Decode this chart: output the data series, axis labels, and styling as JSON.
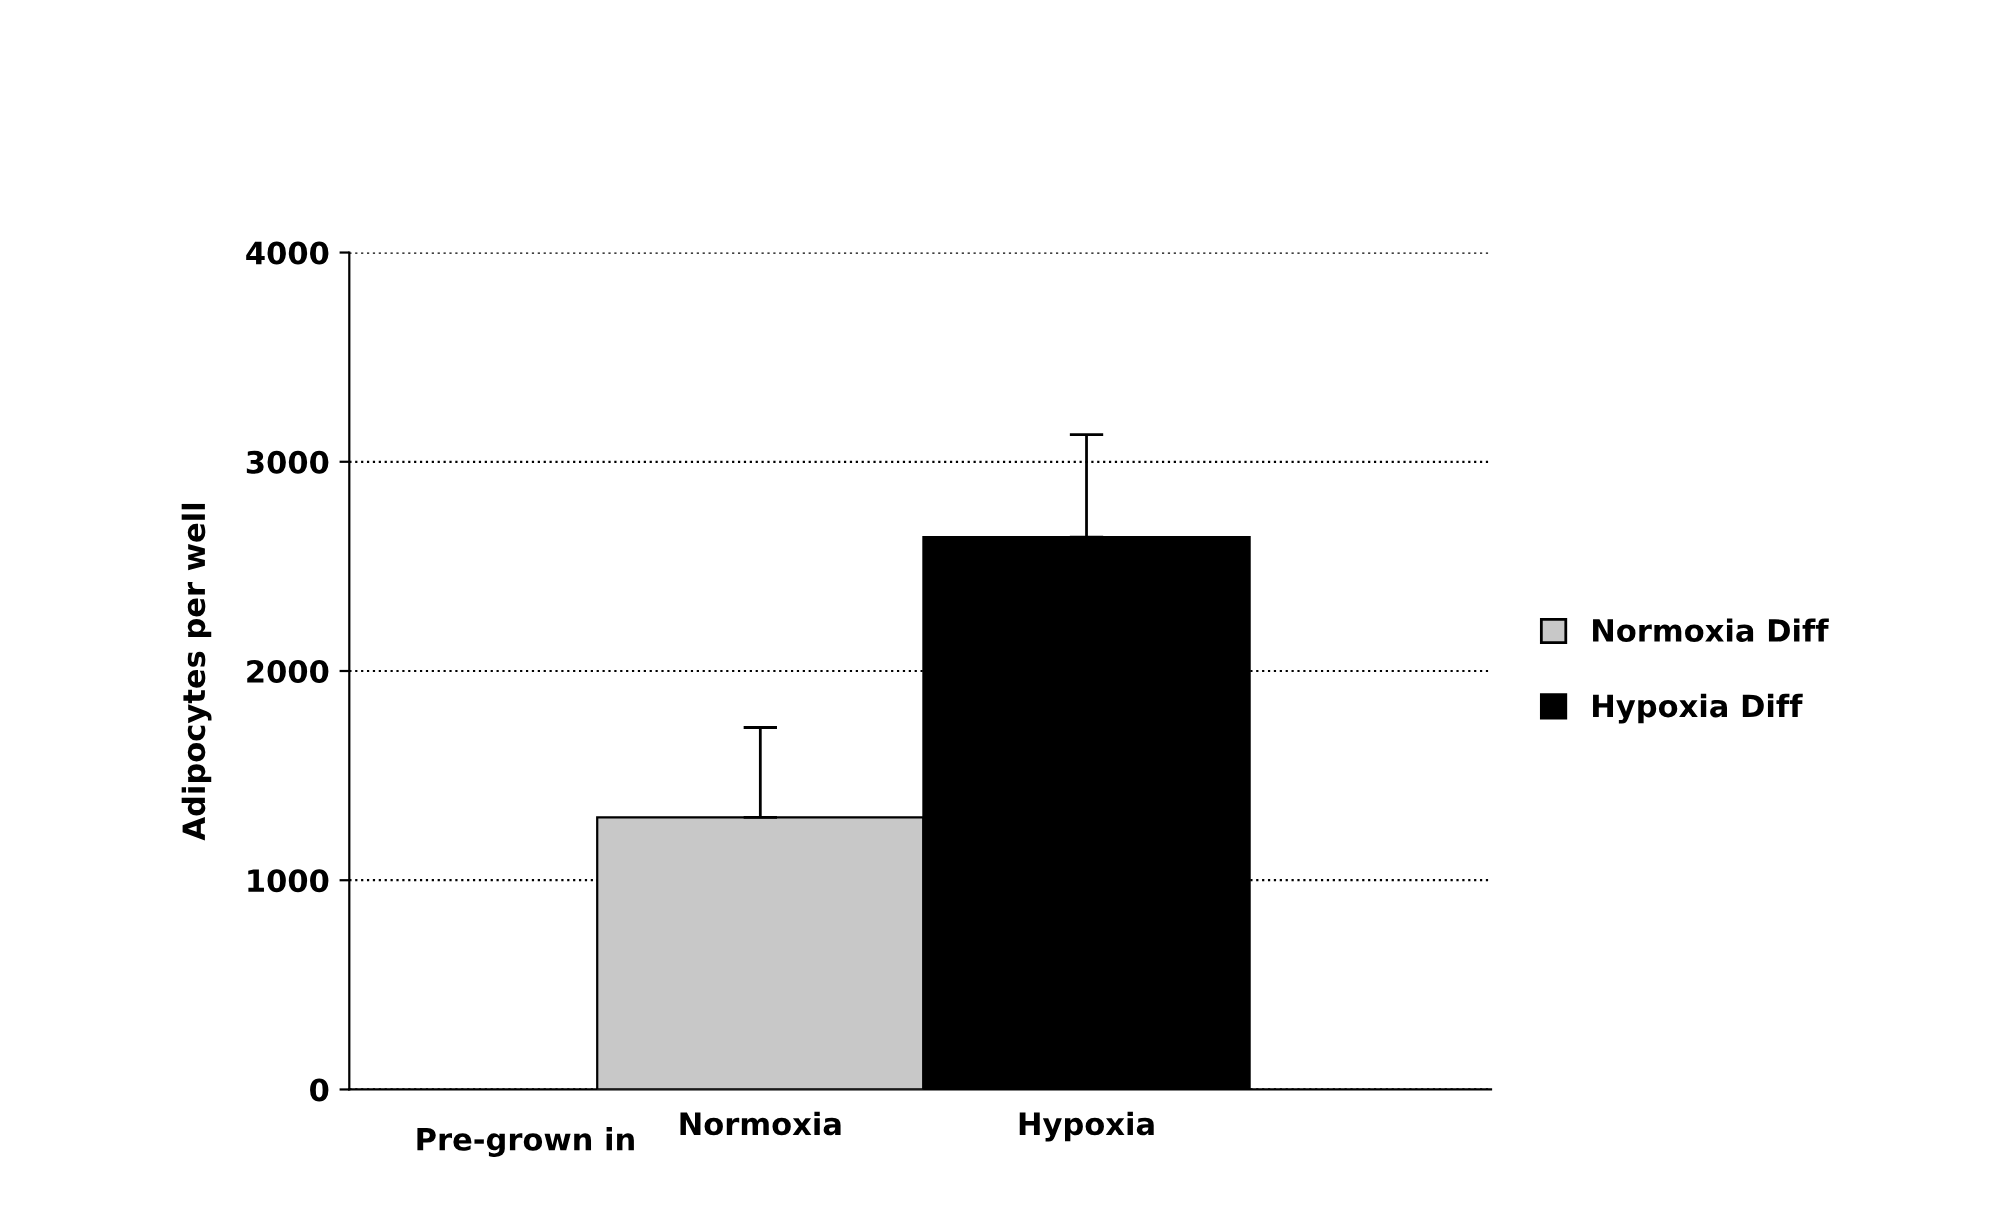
{
  "chart_data": {
    "type": "bar",
    "xlabel": "Pre-grown in",
    "ylabel": "Adipocytes per well",
    "categories": [
      "Normoxia",
      "Hypoxia"
    ],
    "series": [
      {
        "name": "Normoxia Diff",
        "color": "#c8c8c8",
        "values": [
          1300,
          null
        ],
        "errors": [
          [
            1300,
            1730
          ],
          null
        ]
      },
      {
        "name": "Hypoxia Diff",
        "color": "#000000",
        "values": [
          null,
          2640
        ],
        "errors": [
          null,
          [
            2640,
            3130
          ]
        ]
      }
    ],
    "ylim": [
      0,
      4000
    ],
    "yticks": [
      0,
      1000,
      2000,
      3000,
      4000
    ],
    "grid": "y",
    "legend": "right"
  }
}
